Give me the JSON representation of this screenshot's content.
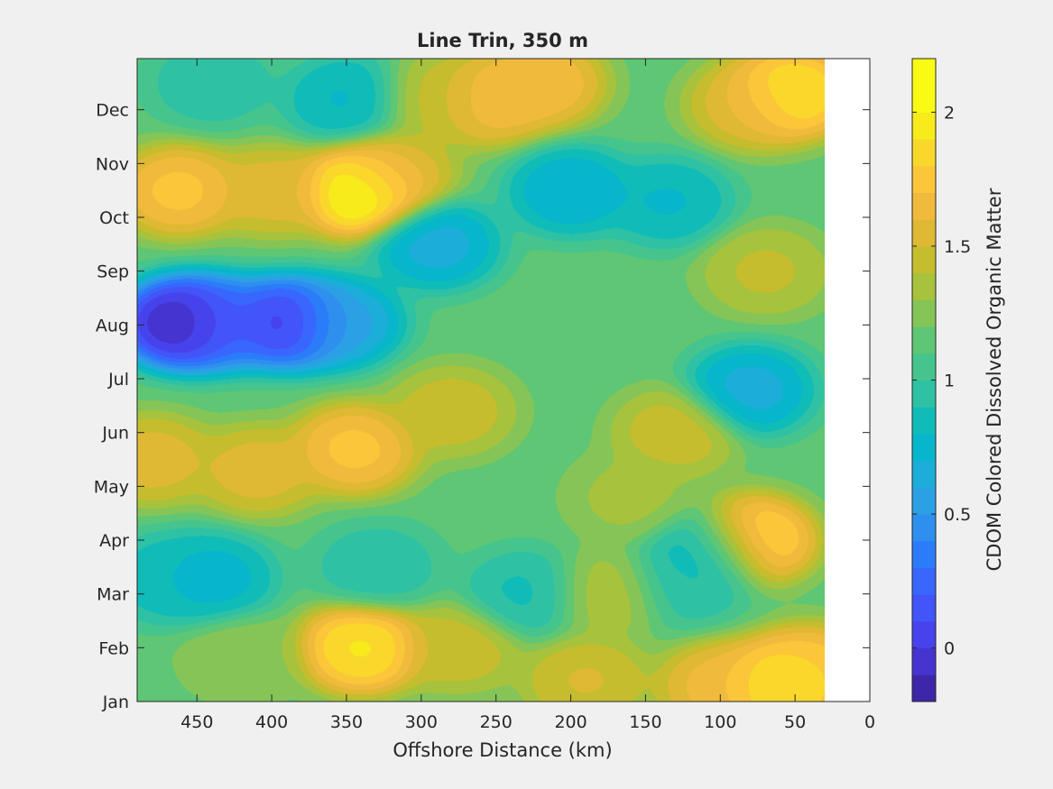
{
  "chart_data": {
    "type": "heatmap",
    "subtype": "filled-contour",
    "title": "Line Trin, 350 m",
    "xlabel": "Offshore Distance (km)",
    "ylabel": "",
    "xlim": [
      490,
      0
    ],
    "x_reversed": true,
    "x_ticks": [
      450,
      400,
      350,
      300,
      250,
      200,
      150,
      100,
      50,
      0
    ],
    "y_categories": [
      "Jan",
      "Feb",
      "Mar",
      "Apr",
      "May",
      "Jun",
      "Jul",
      "Aug",
      "Sep",
      "Oct",
      "Nov",
      "Dec"
    ],
    "y_range_months": [
      1,
      12.95
    ],
    "grid": false,
    "data_extent_x": [
      490,
      30
    ],
    "colorbar": {
      "label": "CDOM Colored Dissolved Organic Matter",
      "range": [
        -0.2,
        2.2
      ],
      "step": 0.1,
      "ticks": [
        0,
        0.5,
        1,
        1.5,
        2
      ],
      "tick_labels": [
        "0",
        "0.5",
        "1",
        "1.5",
        "2"
      ],
      "colormap": "parula",
      "colors": [
        "#3e26a8",
        "#4634d1",
        "#4743ec",
        "#4255f9",
        "#3967fe",
        "#2b7cf9",
        "#2f8fef",
        "#2ba0e5",
        "#1cadd9",
        "#08b6cb",
        "#10bcb8",
        "#2fc1a4",
        "#45c58d",
        "#5ec674",
        "#85c557",
        "#a7c23c",
        "#c5bd2d",
        "#dfb834",
        "#f0ba3c",
        "#fbc63a",
        "#f9d82b",
        "#f7eb1c",
        "#f9fb14"
      ]
    },
    "background": 1.15,
    "features": [
      {
        "x": 460,
        "y": 8.05,
        "value": -0.3
      },
      {
        "x": 435,
        "y": 8.05,
        "value": 0.2
      },
      {
        "x": 390,
        "y": 8.05,
        "value": -0.1
      },
      {
        "x": 355,
        "y": 8.05,
        "value": 0.5
      },
      {
        "x": 290,
        "y": 9.5,
        "value": 0.6
      },
      {
        "x": 340,
        "y": 10.5,
        "value": 2.2
      },
      {
        "x": 320,
        "y": 10.8,
        "value": 1.6
      },
      {
        "x": 462,
        "y": 10.5,
        "value": 1.8
      },
      {
        "x": 400,
        "y": 10.5,
        "value": 1.6
      },
      {
        "x": 290,
        "y": 12.2,
        "value": 1.45
      },
      {
        "x": 255,
        "y": 12.2,
        "value": 1.75
      },
      {
        "x": 220,
        "y": 12.5,
        "value": 1.75
      },
      {
        "x": 350,
        "y": 12.2,
        "value": 0.75
      },
      {
        "x": 440,
        "y": 12.5,
        "value": 0.9
      },
      {
        "x": 200,
        "y": 10.5,
        "value": 0.65
      },
      {
        "x": 135,
        "y": 10.3,
        "value": 0.75
      },
      {
        "x": 55,
        "y": 12.3,
        "value": 2.05
      },
      {
        "x": 80,
        "y": 12.1,
        "value": 1.6
      },
      {
        "x": 345,
        "y": 5.7,
        "value": 1.8
      },
      {
        "x": 410,
        "y": 5.3,
        "value": 1.6
      },
      {
        "x": 480,
        "y": 5.5,
        "value": 1.6
      },
      {
        "x": 280,
        "y": 6.4,
        "value": 1.5
      },
      {
        "x": 130,
        "y": 6.0,
        "value": 1.5
      },
      {
        "x": 80,
        "y": 6.8,
        "value": 0.6
      },
      {
        "x": 70,
        "y": 9.0,
        "value": 1.45
      },
      {
        "x": 160,
        "y": 4.8,
        "value": 1.35
      },
      {
        "x": 340,
        "y": 2.0,
        "value": 2.0
      },
      {
        "x": 275,
        "y": 2.0,
        "value": 1.5
      },
      {
        "x": 420,
        "y": 1.8,
        "value": 1.3
      },
      {
        "x": 440,
        "y": 3.3,
        "value": 0.7
      },
      {
        "x": 470,
        "y": 3.3,
        "value": 0.8
      },
      {
        "x": 230,
        "y": 3.0,
        "value": 0.85
      },
      {
        "x": 330,
        "y": 3.5,
        "value": 0.9
      },
      {
        "x": 105,
        "y": 3.8,
        "value": 0.7
      },
      {
        "x": 125,
        "y": 3.2,
        "value": 0.9
      },
      {
        "x": 80,
        "y": 4.0,
        "value": 2.0
      },
      {
        "x": 60,
        "y": 1.3,
        "value": 2.05
      },
      {
        "x": 100,
        "y": 1.3,
        "value": 1.7
      },
      {
        "x": 40,
        "y": 1.6,
        "value": 1.8
      },
      {
        "x": 190,
        "y": 1.4,
        "value": 1.55
      },
      {
        "x": 175,
        "y": 3.0,
        "value": 1.4
      }
    ]
  }
}
